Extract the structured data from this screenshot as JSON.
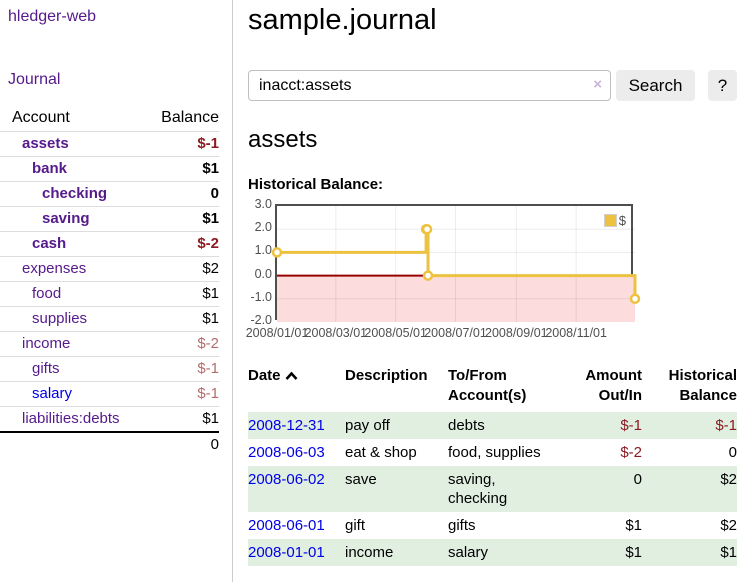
{
  "sidebar": {
    "app_title": "hledger-web",
    "journal_label": "Journal",
    "accounts_table": {
      "header_account": "Account",
      "header_balance": "Balance",
      "rows": [
        {
          "name": "assets",
          "balance": "$-1",
          "indent": 1,
          "bold": true,
          "name_style": "purple",
          "balance_style": "negative"
        },
        {
          "name": "bank",
          "balance": "$1",
          "indent": 2,
          "bold": true,
          "name_style": "purple",
          "balance_style": "normal"
        },
        {
          "name": "checking",
          "balance": "0",
          "indent": 3,
          "bold": true,
          "name_style": "purple",
          "balance_style": "normal"
        },
        {
          "name": "saving",
          "balance": "$1",
          "indent": 3,
          "bold": true,
          "name_style": "purple",
          "balance_style": "normal"
        },
        {
          "name": "cash",
          "balance": "$-2",
          "indent": 2,
          "bold": true,
          "name_style": "purple",
          "balance_style": "negative"
        },
        {
          "name": "expenses",
          "balance": "$2",
          "indent": 1,
          "bold": false,
          "name_style": "purple",
          "balance_style": "normal"
        },
        {
          "name": "food",
          "balance": "$1",
          "indent": 2,
          "bold": false,
          "name_style": "purple",
          "balance_style": "normal"
        },
        {
          "name": "supplies",
          "balance": "$1",
          "indent": 2,
          "bold": false,
          "name_style": "purple",
          "balance_style": "normal"
        },
        {
          "name": "income",
          "balance": "$-2",
          "indent": 1,
          "bold": false,
          "name_style": "purple",
          "balance_style": "negative-muted"
        },
        {
          "name": "gifts",
          "balance": "$-1",
          "indent": 2,
          "bold": false,
          "name_style": "purple",
          "balance_style": "negative-muted"
        },
        {
          "name": "salary",
          "balance": "$-1",
          "indent": 2,
          "bold": false,
          "name_style": "blue",
          "balance_style": "negative-muted"
        },
        {
          "name": "liabilities:debts",
          "balance": "$1",
          "indent": 1,
          "bold": false,
          "name_style": "purple",
          "balance_style": "normal"
        }
      ],
      "total": "0"
    }
  },
  "main": {
    "title": "sample.journal",
    "search": {
      "value": "inacct:assets",
      "clear_icon": "×",
      "button_label": "Search",
      "help_label": "?"
    },
    "account_heading": "assets",
    "transactions_table": {
      "headers": {
        "date": "Date",
        "description": "Description",
        "tofrom_line1": "To/From",
        "tofrom_line2": "Account(s)",
        "amount_line1": "Amount",
        "amount_line2": "Out/In",
        "balance_line1": "Historical",
        "balance_line2": "Balance"
      },
      "rows": [
        {
          "date": "2008-12-31",
          "description": "pay off",
          "accounts": "debts",
          "amount": "$-1",
          "amount_negative": true,
          "balance": "$-1",
          "balance_negative": true
        },
        {
          "date": "2008-06-03",
          "description": "eat & shop",
          "accounts": "food, supplies",
          "amount": "$-2",
          "amount_negative": true,
          "balance": "0",
          "balance_negative": false
        },
        {
          "date": "2008-06-02",
          "description": "save",
          "accounts": "saving, checking",
          "amount": "0",
          "amount_negative": false,
          "balance": "$2",
          "balance_negative": false
        },
        {
          "date": "2008-06-01",
          "description": "gift",
          "accounts": "gifts",
          "amount": "$1",
          "amount_negative": false,
          "balance": "$2",
          "balance_negative": false
        },
        {
          "date": "2008-01-01",
          "description": "income",
          "accounts": "salary",
          "amount": "$1",
          "amount_negative": false,
          "balance": "$1",
          "balance_negative": false
        }
      ]
    }
  },
  "chart_data": {
    "type": "line",
    "step": true,
    "title": "Historical Balance:",
    "series": [
      {
        "name": "$",
        "color": "#edc240",
        "points": [
          [
            "2008-01-01",
            1
          ],
          [
            "2008-06-01",
            2
          ],
          [
            "2008-06-02",
            2
          ],
          [
            "2008-06-03",
            0
          ],
          [
            "2008-12-31",
            -1
          ]
        ]
      }
    ],
    "x_range": [
      "2008-01-01",
      "2008-12-31"
    ],
    "ylim": [
      -2,
      3
    ],
    "y_ticks": [
      {
        "value": 3,
        "label": "3.0"
      },
      {
        "value": 2,
        "label": "2.0"
      },
      {
        "value": 1,
        "label": "1.0"
      },
      {
        "value": 0,
        "label": "0.0"
      },
      {
        "value": -1,
        "label": "-1.0"
      },
      {
        "value": -2,
        "label": "-2.0"
      }
    ],
    "x_ticks": [
      {
        "date": "2008-01-01",
        "label": "2008/01/01"
      },
      {
        "date": "2008-03-01",
        "label": "2008/03/01"
      },
      {
        "date": "2008-05-01",
        "label": "2008/05/01"
      },
      {
        "date": "2008-07-01",
        "label": "2008/07/01"
      },
      {
        "date": "2008-09-01",
        "label": "2008/09/01"
      },
      {
        "date": "2008-11-01",
        "label": "2008/11/01"
      }
    ],
    "grid": true,
    "legend_position": "top-right",
    "negative_region_color": "#fcdcdc",
    "zero_line_color": "#990000",
    "gridline_color": "rgba(0,0,0,0.075)"
  }
}
